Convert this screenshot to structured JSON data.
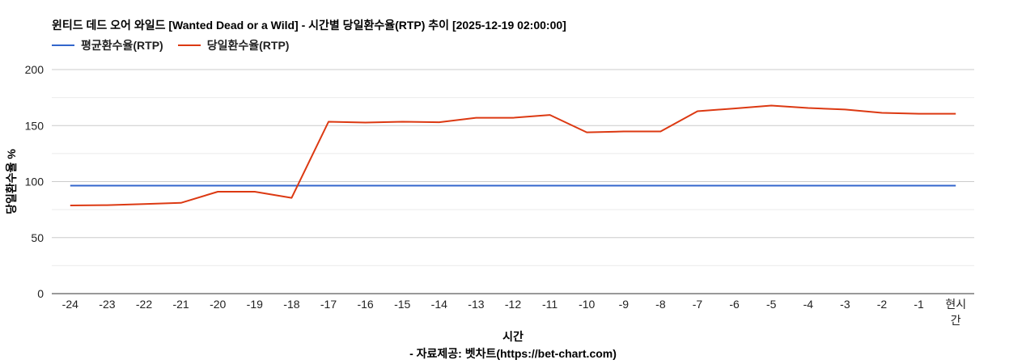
{
  "chart_data": {
    "type": "line",
    "title": "윈티드 데드 오어 와일드 [Wanted Dead or a Wild] - 시간별 당일환수율(RTP) 추이 [2025-12-19 02:00:00]",
    "xlabel": "시간",
    "ylabel": "당일환수율 %",
    "footer": "- 자료제공: 벳차트(https://bet-chart.com)",
    "ylim": [
      0,
      200
    ],
    "yticks": [
      0,
      50,
      100,
      150,
      200
    ],
    "grid": true,
    "legend_position": "top",
    "categories": [
      "-24",
      "-23",
      "-22",
      "-21",
      "-20",
      "-19",
      "-18",
      "-17",
      "-16",
      "-15",
      "-14",
      "-13",
      "-12",
      "-11",
      "-10",
      "-9",
      "-8",
      "-7",
      "-6",
      "-5",
      "-4",
      "-3",
      "-2",
      "-1",
      "현시간"
    ],
    "series": [
      {
        "name": "평균환수율(RTP)",
        "color": "#3366cc",
        "values": [
          96.4,
          96.4,
          96.4,
          96.4,
          96.4,
          96.4,
          96.4,
          96.4,
          96.4,
          96.4,
          96.4,
          96.4,
          96.4,
          96.4,
          96.4,
          96.4,
          96.4,
          96.4,
          96.4,
          96.4,
          96.4,
          96.4,
          96.4,
          96.4,
          96.4
        ]
      },
      {
        "name": "당일환수율(RTP)",
        "color": "#dc3912",
        "values": [
          78.7,
          79.0,
          80.0,
          81.0,
          91.0,
          91.0,
          85.5,
          153.4,
          152.7,
          153.4,
          153.0,
          157.0,
          157.0,
          159.5,
          144.0,
          144.8,
          144.8,
          162.8,
          165.3,
          167.9,
          165.7,
          164.3,
          161.4,
          160.6,
          160.6
        ]
      }
    ]
  }
}
